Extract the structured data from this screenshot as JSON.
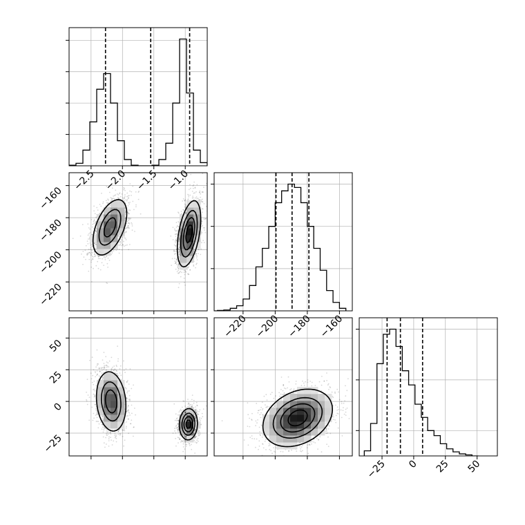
{
  "chart_data": {
    "type": "corner",
    "parameters": [
      {
        "id": "p1",
        "range": [
          -2.85,
          -0.65
        ],
        "ticks": [
          -2.5,
          -2.0,
          -1.5,
          -1.0
        ],
        "tick_labels": [
          "−2.5",
          "−2.0",
          "−1.5",
          "−1.0"
        ],
        "quantiles": [
          -2.27,
          -1.55,
          -0.93
        ],
        "histogram": {
          "bin_edges": [
            -2.85,
            -2.74,
            -2.63,
            -2.52,
            -2.41,
            -2.3,
            -2.19,
            -2.08,
            -1.97,
            -1.86,
            -1.75,
            -1.64,
            -1.53,
            -1.42,
            -1.31,
            -1.2,
            -1.09,
            -0.98,
            -0.87,
            -0.76,
            -0.65
          ],
          "counts": [
            0.01,
            0.04,
            0.25,
            0.7,
            1.22,
            1.47,
            1.0,
            0.4,
            0.1,
            0.01,
            0.0,
            0.0,
            0.01,
            0.1,
            0.36,
            1.0,
            2.02,
            1.16,
            0.25,
            0.05
          ]
        },
        "y_gridlines": [
          0.5,
          1.0,
          1.5,
          2.0
        ]
      },
      {
        "id": "p2",
        "range": [
          -238,
          -152
        ],
        "ticks": [
          -220,
          -200,
          -180,
          -160
        ],
        "tick_labels": [
          "−220",
          "−200",
          "−180",
          "−160"
        ],
        "quantiles": [
          -199.5,
          -189.5,
          -179.0
        ],
        "histogram": {
          "bin_edges": [
            -240,
            -236,
            -232,
            -228,
            -224,
            -220,
            -216,
            -212,
            -208,
            -204,
            -200,
            -196,
            -192,
            -188,
            -184,
            -180,
            -176,
            -172,
            -168,
            -164,
            -160,
            -156
          ],
          "counts": [
            0.0,
            0.005,
            0.01,
            0.03,
            0.06,
            0.14,
            0.3,
            0.52,
            0.74,
            1.0,
            1.28,
            1.42,
            1.5,
            1.46,
            1.28,
            1.0,
            0.74,
            0.48,
            0.24,
            0.1,
            0.03
          ],
          "note_ignore": ""
        },
        "y_gridlines": [
          0.5,
          1.0,
          1.5
        ]
      },
      {
        "id": "p3",
        "range": [
          -43,
          66
        ],
        "ticks": [
          -25,
          0,
          25,
          50
        ],
        "tick_labels": [
          "−25",
          "0",
          "25",
          "50"
        ],
        "quantiles": [
          -21.0,
          -10.5,
          7.0
        ],
        "histogram": {
          "bin_edges": [
            -39,
            -34,
            -29,
            -24,
            -19,
            -14,
            -9,
            -4,
            1,
            6,
            11,
            16,
            21,
            26,
            31,
            36,
            41,
            46,
            51
          ],
          "counts": [
            0.05,
            0.32,
            0.91,
            1.2,
            1.25,
            1.08,
            0.84,
            0.7,
            0.51,
            0.38,
            0.25,
            0.2,
            0.12,
            0.07,
            0.04,
            0.02,
            0.01,
            0.0
          ],
          "note_ignore": ""
        },
        "y_gridlines": [
          0.25,
          0.75,
          1.25
        ]
      }
    ],
    "pairs": [
      {
        "x": "p1",
        "y": "p2",
        "clusters": [
          {
            "mean": [
              -2.2,
              -186
            ],
            "sd": [
              0.14,
              9.0
            ],
            "corr": 0.5,
            "peak_density": 0.75
          },
          {
            "mean": [
              -0.94,
              -190
            ],
            "sd": [
              0.09,
              10.0
            ],
            "corr": 0.45,
            "peak_density": 1.0
          }
        ]
      },
      {
        "x": "p1",
        "y": "p3",
        "clusters": [
          {
            "mean": [
              -2.18,
              0
            ],
            "sd": [
              0.12,
              12.0
            ],
            "corr": -0.15,
            "peak_density": 0.8
          },
          {
            "mean": [
              -0.95,
              -18
            ],
            "sd": [
              0.07,
              6.0
            ],
            "corr": 0.05,
            "peak_density": 1.0
          }
        ]
      },
      {
        "x": "p2",
        "y": "p3",
        "clusters": [
          {
            "mean": [
              -186,
              -13
            ],
            "sd": [
              10.5,
              11.0
            ],
            "corr": 0.3,
            "peak_density": 1.0
          }
        ]
      }
    ],
    "contour_levels": [
      0.12,
      0.35,
      0.6,
      0.85
    ],
    "grid": true,
    "colors": {
      "line": "#000000",
      "grid": "#b0b0b0",
      "scatter": "#000000"
    }
  }
}
